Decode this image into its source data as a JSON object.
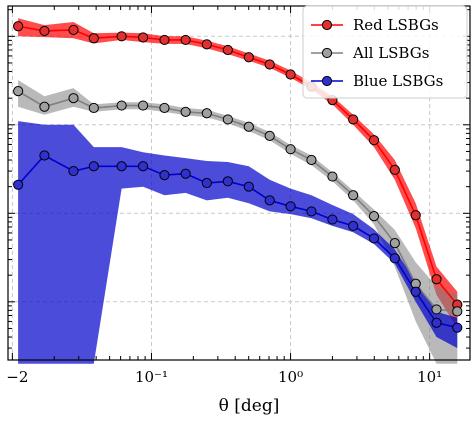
{
  "chart_data": {
    "type": "line",
    "xlabel": "θ [deg]",
    "xscale": "log",
    "yscale": "log",
    "xlim": [
      0.0093,
      19.5
    ],
    "ylim": [
      0.00022,
      2.2
    ],
    "x_tick_labels": [
      "−2",
      "10⁻¹",
      "10⁰",
      "10¹"
    ],
    "grid": true,
    "legend_position": "top-right",
    "x": [
      0.011,
      0.017,
      0.0275,
      0.0385,
      0.061,
      0.087,
      0.124,
      0.176,
      0.25,
      0.354,
      0.501,
      0.708,
      1.0,
      1.413,
      2.0,
      2.818,
      3.98,
      5.62,
      7.94,
      11.2,
      15.8
    ],
    "series": [
      {
        "name": "Red LSBGs",
        "color": "#ff0000",
        "marker_fill": "#e03030",
        "values": [
          1.3,
          1.15,
          1.18,
          0.95,
          1.0,
          0.97,
          0.91,
          0.91,
          0.81,
          0.7,
          0.58,
          0.48,
          0.37,
          0.27,
          0.19,
          0.115,
          0.067,
          0.031,
          0.0095,
          0.0018,
          0.00093
        ],
        "band_low": [
          1.0,
          0.98,
          0.95,
          0.83,
          0.91,
          0.86,
          0.82,
          0.82,
          0.73,
          0.63,
          0.53,
          0.44,
          0.34,
          0.25,
          0.17,
          0.1,
          0.056,
          0.024,
          0.0068,
          0.0012,
          0.0005
        ],
        "band_high": [
          1.6,
          1.34,
          1.45,
          1.08,
          1.1,
          1.08,
          1.0,
          1.0,
          0.89,
          0.77,
          0.64,
          0.53,
          0.41,
          0.3,
          0.21,
          0.13,
          0.078,
          0.04,
          0.013,
          0.0025,
          0.0013
        ]
      },
      {
        "name": "All LSBGs",
        "color": "#808080",
        "marker_fill": "#a0a0a0",
        "values": [
          0.24,
          0.16,
          0.2,
          0.155,
          0.165,
          0.165,
          0.155,
          0.14,
          0.135,
          0.115,
          0.095,
          0.075,
          0.053,
          0.04,
          0.026,
          0.016,
          0.0093,
          0.0046,
          0.0016,
          0.00082,
          0.00078
        ],
        "band_low": [
          0.16,
          0.13,
          0.16,
          0.14,
          0.15,
          0.15,
          0.14,
          0.128,
          0.122,
          0.104,
          0.085,
          0.067,
          0.047,
          0.035,
          0.023,
          0.014,
          0.0075,
          0.0025,
          0.0006,
          0.0002,
          0.0002
        ],
        "band_high": [
          0.32,
          0.21,
          0.26,
          0.17,
          0.18,
          0.18,
          0.17,
          0.155,
          0.148,
          0.126,
          0.105,
          0.083,
          0.059,
          0.045,
          0.029,
          0.018,
          0.011,
          0.0065,
          0.0028,
          0.0015,
          0.0012
        ]
      },
      {
        "name": "Blue LSBGs",
        "color": "#0000cc",
        "marker_fill": "#3030d0",
        "values": [
          0.021,
          0.045,
          0.03,
          0.034,
          0.034,
          0.034,
          0.027,
          0.028,
          0.022,
          0.023,
          0.02,
          0.014,
          0.012,
          0.0105,
          0.0085,
          0.0072,
          0.0052,
          0.0031,
          0.0013,
          0.00058,
          0.00051
        ],
        "band_low": [
          0.0002,
          0.0002,
          0.0002,
          0.0002,
          0.019,
          0.02,
          0.016,
          0.017,
          0.014,
          0.015,
          0.013,
          0.0105,
          0.0098,
          0.0088,
          0.0072,
          0.0061,
          0.0045,
          0.0027,
          0.001,
          0.0004,
          0.0003
        ],
        "band_high": [
          0.11,
          0.1,
          0.1,
          0.056,
          0.056,
          0.049,
          0.045,
          0.042,
          0.039,
          0.038,
          0.034,
          0.024,
          0.019,
          0.016,
          0.0124,
          0.0098,
          0.0066,
          0.0039,
          0.0017,
          0.00077,
          0.00066
        ]
      }
    ]
  }
}
